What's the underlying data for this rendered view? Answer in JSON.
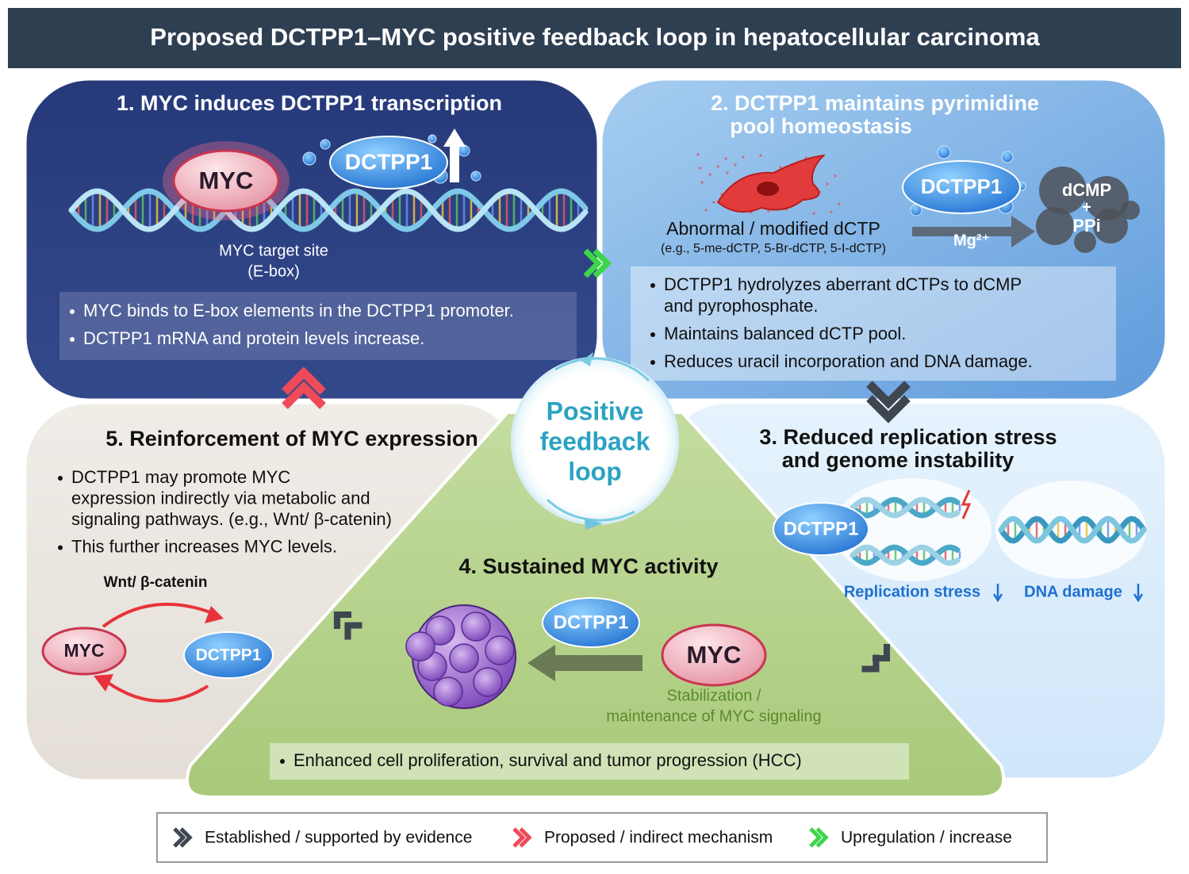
{
  "title": "Proposed DCTPP1–MYC positive feedback loop in hepatocellular carcinoma",
  "center": [
    "Positive",
    "feedback",
    "loop"
  ],
  "panels": [
    {
      "title": [
        "1. MYC induces DCTPP1 transcription"
      ],
      "labels": [
        "MYC",
        "DCTPP1",
        "MYC target site",
        "(E-box)"
      ],
      "bullets": [
        [
          "MYC binds to E-box elements in the DCTPP1 promoter."
        ],
        [
          "DCTPP1 mRNA and protein levels increase."
        ]
      ]
    },
    {
      "title": [
        "2. DCTPP1 maintains pyrimidine",
        "pool homeostasis"
      ],
      "labels": [
        "DCTPP1",
        "Abnormal / modified dCTP",
        "(e.g., 5-me-dCTP, 5-Br-dCTP, 5-I-dCTP)",
        "Mg²⁺",
        "dCMP",
        "+",
        "PPi"
      ],
      "bullets": [
        [
          "DCTPP1 hydrolyzes aberrant dCTPs to dCMP",
          "and pyrophosphate."
        ],
        [
          "Maintains balanced dCTP pool."
        ],
        [
          "Reduces uracil incorporation and DNA damage."
        ]
      ]
    },
    {
      "title": [
        "3. Reduced replication stress",
        "and genome instability"
      ],
      "labels": [
        "DCTPP1",
        "Replication stress",
        "DNA damage"
      ],
      "bullets": []
    },
    {
      "title": [
        "4. Sustained MYC activity"
      ],
      "labels": [
        "DCTPP1",
        "MYC",
        "Stabilization /",
        "maintenance of MYC signaling"
      ],
      "bullets": [
        [
          "Enhanced cell proliferation, survival and tumor progression (HCC)"
        ]
      ]
    },
    {
      "title": [
        "5. Reinforcement of MYC expression"
      ],
      "labels": [
        "Wnt/ β-catenin",
        "MYC",
        "DCTPP1"
      ],
      "bullets": [
        [
          "DCTPP1 may promote MYC",
          "expression indirectly via metabolic and",
          "signaling pathways. (e.g., Wnt/ β-catenin)"
        ],
        [
          "This further increases MYC levels."
        ]
      ]
    }
  ],
  "legend": [
    "Established / supported by evidence",
    "Proposed / indirect mechanism",
    "Upregulation / increase"
  ]
}
